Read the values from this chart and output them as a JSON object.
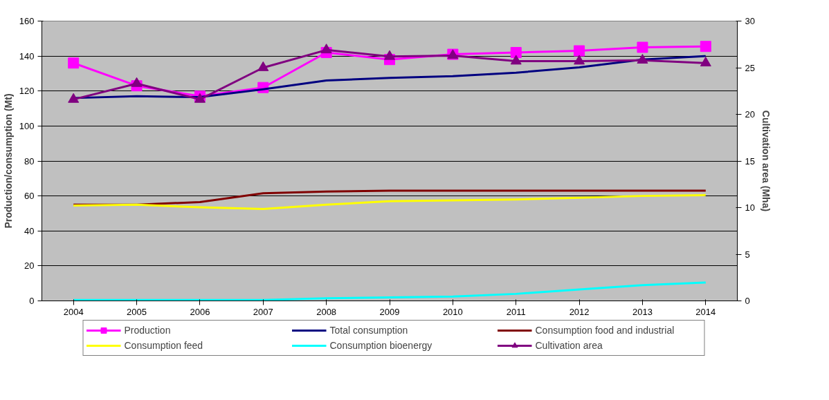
{
  "chart_data": {
    "type": "line",
    "xlabel": null,
    "ylabel": "Production/consumption (Mt)",
    "y2label": "Cultivation area (Mha)",
    "categories": [
      "2004",
      "2005",
      "2006",
      "2007",
      "2008",
      "2009",
      "2010",
      "2011",
      "2012",
      "2013",
      "2014"
    ],
    "series": [
      {
        "name": "Production",
        "color": "#ff00ff",
        "marker": "square",
        "values": [
          136,
          123,
          117,
          122,
          142,
          138,
          141,
          142,
          143,
          145,
          145.5
        ]
      },
      {
        "name": "Total consumption",
        "color": "#000080",
        "marker": "none",
        "values": [
          116,
          117,
          116.5,
          121,
          126,
          127.5,
          128.5,
          130.5,
          133.5,
          138,
          140
        ]
      },
      {
        "name": "Consumption food and industrial",
        "color": "#800000",
        "marker": "none",
        "values": [
          55,
          55,
          56.5,
          61.5,
          62.5,
          63,
          63,
          63,
          63,
          63,
          63
        ]
      },
      {
        "name": "Consumption feed",
        "color": "#ffff00",
        "marker": "none",
        "values": [
          54.5,
          55,
          53.5,
          52.5,
          55,
          57,
          57.5,
          58,
          59,
          60,
          60.5
        ]
      },
      {
        "name": "Consumption bioenergy",
        "color": "#00ffff",
        "marker": "none",
        "values": [
          0.5,
          0.5,
          0.5,
          0.5,
          1.5,
          2,
          2.5,
          4,
          6.5,
          9,
          10.5
        ]
      },
      {
        "name": "Cultivation area",
        "color": "#800080",
        "marker": "triangle",
        "axis": "y2",
        "values": [
          21.6,
          23.3,
          21.6,
          25.0,
          26.9,
          26.2,
          26.3,
          25.7,
          25.7,
          25.8,
          25.5
        ]
      }
    ],
    "ylim": [
      0,
      160
    ],
    "yticks": [
      0,
      20,
      40,
      60,
      80,
      100,
      120,
      140,
      160
    ],
    "y2lim": [
      0,
      30
    ],
    "y2ticks": [
      0,
      5,
      10,
      15,
      20,
      25,
      30
    ],
    "grid": "y",
    "legend": "bottom"
  }
}
